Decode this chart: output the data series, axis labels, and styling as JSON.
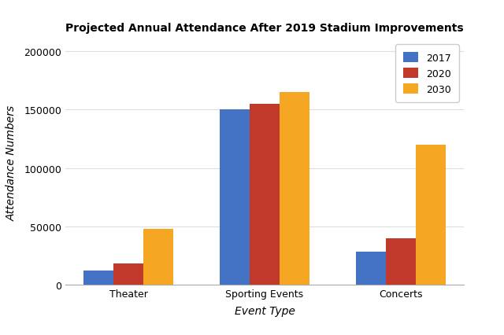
{
  "title": "Projected Annual Attendance After 2019 Stadium Improvements",
  "xlabel": "Event Type",
  "ylabel": "Attendance Numbers",
  "categories": [
    "Theater",
    "Sporting Events",
    "Concerts"
  ],
  "series": [
    {
      "label": "2017",
      "color": "#4472C4",
      "values": [
        12000,
        150000,
        28000
      ]
    },
    {
      "label": "2020",
      "color": "#C0392B",
      "values": [
        18000,
        155000,
        40000
      ]
    },
    {
      "label": "2030",
      "color": "#F5A623",
      "values": [
        48000,
        165000,
        120000
      ]
    }
  ],
  "ylim": [
    0,
    210000
  ],
  "yticks": [
    0,
    50000,
    100000,
    150000,
    200000
  ],
  "ytick_labels": [
    "0",
    "50000",
    "100000",
    "150000",
    "200000"
  ],
  "background_color": "#ffffff",
  "plot_bg_color": "#ffffff",
  "title_fontsize": 10,
  "axis_label_fontsize": 10,
  "tick_fontsize": 9,
  "legend_fontsize": 9,
  "bar_width": 0.22,
  "grid_color": "#dddddd"
}
